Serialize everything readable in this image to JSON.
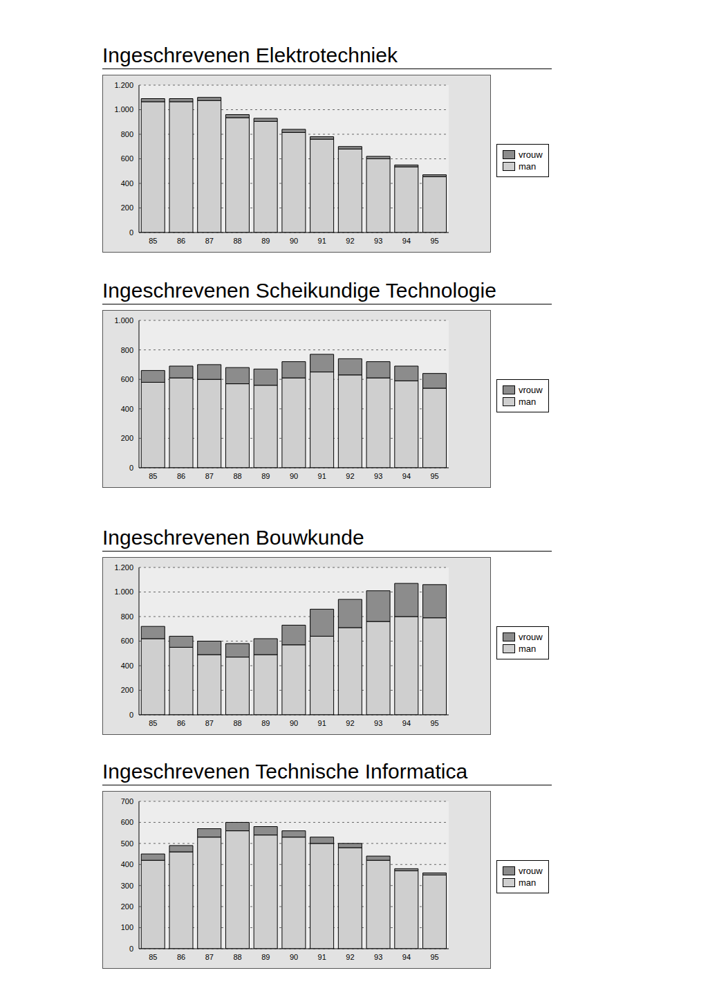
{
  "chart_data": [
    {
      "type": "bar",
      "title": "Ingeschrevenen Elektrotechniek",
      "categories": [
        "85",
        "86",
        "87",
        "88",
        "89",
        "90",
        "91",
        "92",
        "93",
        "94",
        "95"
      ],
      "series": [
        {
          "name": "man",
          "color": "#cfcfcf",
          "values": [
            1065,
            1065,
            1075,
            935,
            905,
            815,
            760,
            680,
            600,
            535,
            455
          ]
        },
        {
          "name": "vrouw",
          "color": "#8c8c8c",
          "values": [
            25,
            25,
            25,
            25,
            25,
            25,
            20,
            20,
            20,
            15,
            15
          ]
        }
      ],
      "ylim": [
        0,
        1200
      ],
      "yticks": [
        0,
        200,
        400,
        600,
        800,
        {
          "value": 1000,
          "label": "1.000"
        },
        {
          "value": 1200,
          "label": "1.200"
        }
      ],
      "stacked": true,
      "grid": true,
      "legend": "right"
    },
    {
      "type": "bar",
      "title": "Ingeschrevenen Scheikundige Technologie",
      "categories": [
        "85",
        "86",
        "87",
        "88",
        "89",
        "90",
        "91",
        "92",
        "93",
        "94",
        "95"
      ],
      "series": [
        {
          "name": "man",
          "color": "#cfcfcf",
          "values": [
            580,
            610,
            600,
            570,
            560,
            610,
            650,
            630,
            610,
            590,
            540
          ]
        },
        {
          "name": "vrouw",
          "color": "#8c8c8c",
          "values": [
            80,
            80,
            100,
            110,
            110,
            110,
            120,
            110,
            110,
            100,
            100
          ]
        }
      ],
      "ylim": [
        0,
        1000
      ],
      "yticks": [
        0,
        200,
        400,
        600,
        800,
        {
          "value": 1000,
          "label": "1.000"
        }
      ],
      "stacked": true,
      "grid": true,
      "legend": "right"
    },
    {
      "type": "bar",
      "title": "Ingeschrevenen Bouwkunde",
      "categories": [
        "85",
        "86",
        "87",
        "88",
        "89",
        "90",
        "91",
        "92",
        "93",
        "94",
        "95"
      ],
      "series": [
        {
          "name": "man",
          "color": "#cfcfcf",
          "values": [
            620,
            550,
            490,
            470,
            490,
            570,
            640,
            710,
            760,
            800,
            790
          ]
        },
        {
          "name": "vrouw",
          "color": "#8c8c8c",
          "values": [
            100,
            90,
            110,
            110,
            130,
            160,
            220,
            230,
            250,
            270,
            270
          ]
        }
      ],
      "ylim": [
        0,
        1200
      ],
      "yticks": [
        0,
        200,
        400,
        600,
        800,
        {
          "value": 1000,
          "label": "1.000"
        },
        {
          "value": 1200,
          "label": "1.200"
        }
      ],
      "stacked": true,
      "grid": true,
      "legend": "right"
    },
    {
      "type": "bar",
      "title": "Ingeschrevenen Technische Informatica",
      "categories": [
        "85",
        "86",
        "87",
        "88",
        "89",
        "90",
        "91",
        "92",
        "93",
        "94",
        "95"
      ],
      "series": [
        {
          "name": "man",
          "color": "#cfcfcf",
          "values": [
            420,
            460,
            530,
            560,
            540,
            530,
            500,
            480,
            420,
            370,
            350
          ]
        },
        {
          "name": "vrouw",
          "color": "#8c8c8c",
          "values": [
            30,
            30,
            40,
            40,
            40,
            30,
            30,
            20,
            20,
            10,
            10
          ]
        }
      ],
      "ylim": [
        0,
        700
      ],
      "yticks": [
        0,
        100,
        200,
        300,
        400,
        500,
        600,
        700
      ],
      "stacked": true,
      "grid": true,
      "legend": "right"
    }
  ]
}
